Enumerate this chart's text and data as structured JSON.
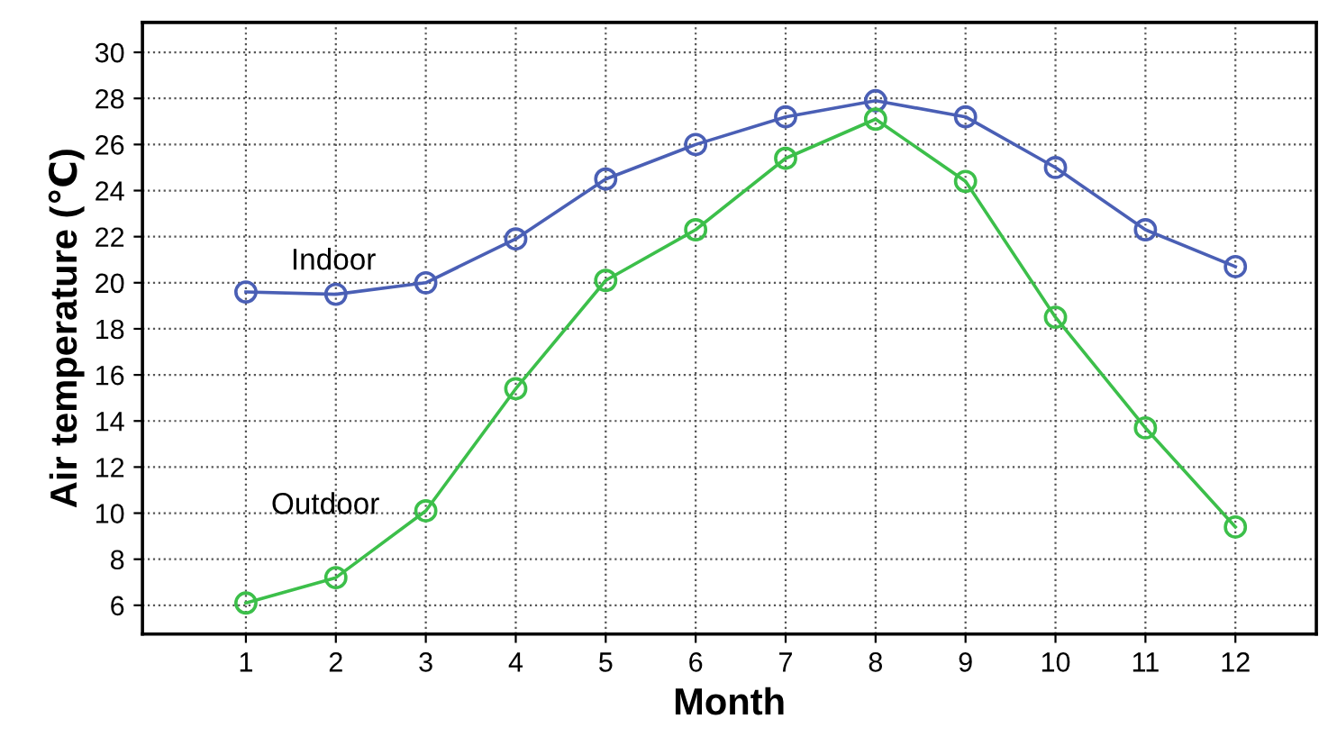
{
  "chart_data": {
    "type": "line",
    "xlabel": "Month",
    "ylabel": "Air temperature (℃)",
    "x": [
      1,
      2,
      3,
      4,
      5,
      6,
      7,
      8,
      9,
      10,
      11,
      12
    ],
    "series": [
      {
        "name": "Indoor",
        "color": "#4a5fb5",
        "values": [
          19.6,
          19.5,
          20.0,
          21.9,
          24.5,
          26.0,
          27.2,
          27.9,
          27.2,
          25.0,
          22.3,
          20.7
        ]
      },
      {
        "name": "Outdoor",
        "color": "#3cbf4a",
        "values": [
          6.1,
          7.2,
          10.1,
          15.4,
          20.1,
          22.3,
          25.4,
          27.1,
          24.4,
          18.5,
          13.7,
          9.4
        ]
      }
    ],
    "xlim": [
      -0.15,
      12.9
    ],
    "xticks": [
      1,
      2,
      3,
      4,
      5,
      6,
      7,
      8,
      9,
      10,
      11,
      12
    ],
    "ylim": [
      4.75,
      31.3
    ],
    "yticks": [
      6,
      8,
      10,
      12,
      14,
      16,
      18,
      20,
      22,
      24,
      26,
      28,
      30
    ],
    "grid": true,
    "marker": "circle",
    "line_style": "solid",
    "legend": false
  }
}
